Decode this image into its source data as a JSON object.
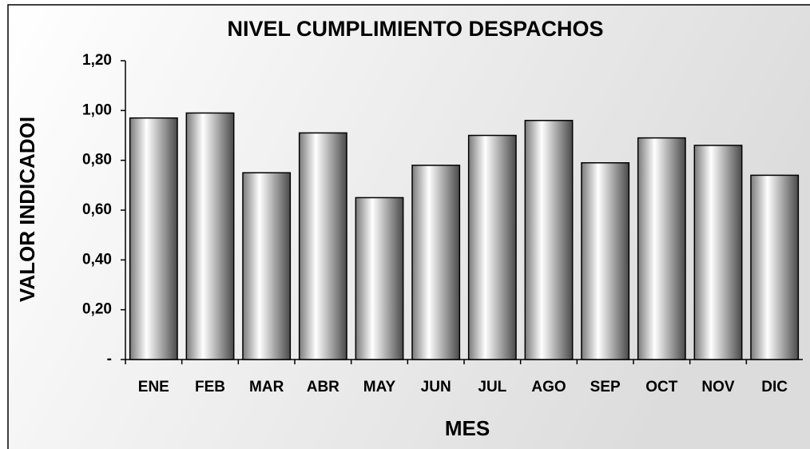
{
  "chart_data": {
    "type": "bar",
    "title": "NIVEL CUMPLIMIENTO DESPACHOS",
    "x_label": "MES",
    "y_label": "VALOR INDICADOI",
    "categories": [
      "ENE",
      "FEB",
      "MAR",
      "ABR",
      "MAY",
      "JUN",
      "JUL",
      "AGO",
      "SEP",
      "OCT",
      "NOV",
      "DIC"
    ],
    "values": [
      0.97,
      0.99,
      0.75,
      0.91,
      0.65,
      0.78,
      0.9,
      0.96,
      0.79,
      0.89,
      0.86,
      0.74
    ],
    "color": "#9a9a9a",
    "ylim": [
      0,
      1.2
    ],
    "yticks": [
      {
        "value": 0,
        "label": "-"
      },
      {
        "value": 0.2,
        "label": "0,20"
      },
      {
        "value": 0.4,
        "label": "0,40"
      },
      {
        "value": 0.6,
        "label": "0,60"
      },
      {
        "value": 0.8,
        "label": "0,80"
      },
      {
        "value": 1.0,
        "label": "1,00"
      },
      {
        "value": 1.2,
        "label": "1,20"
      }
    ],
    "grid": false
  }
}
